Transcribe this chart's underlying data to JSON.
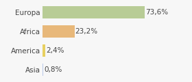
{
  "categories": [
    "Asia",
    "America",
    "Africa",
    "Europa"
  ],
  "values": [
    0.8,
    2.4,
    23.2,
    73.6
  ],
  "labels": [
    "0,8%",
    "2,4%",
    "23,2%",
    "73,6%"
  ],
  "bar_colors": [
    "#b8c8e8",
    "#e8d060",
    "#e8b87a",
    "#b8cc96"
  ],
  "background_color": "#f7f7f7",
  "xlim": [
    0,
    105
  ],
  "bar_height": 0.65,
  "label_fontsize": 7.5,
  "tick_fontsize": 7.5,
  "label_color": "#444444",
  "tick_color": "#444444"
}
